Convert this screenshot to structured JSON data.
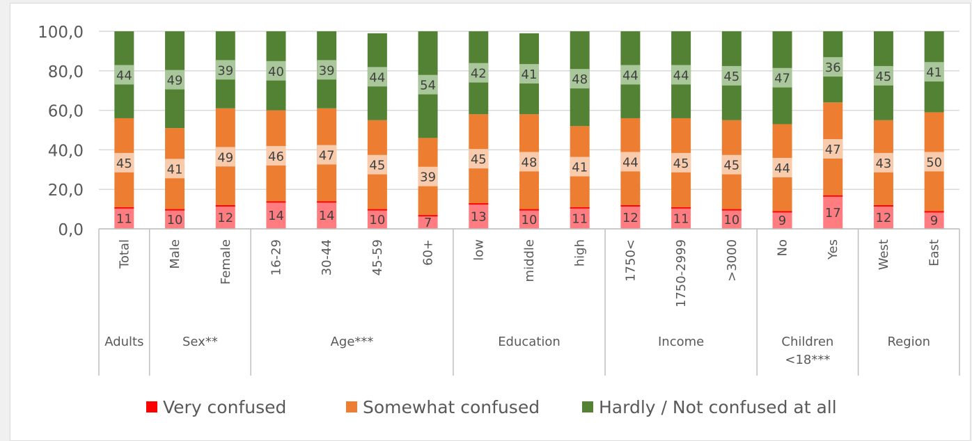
{
  "chart_data": {
    "type": "bar",
    "stacked": true,
    "ylim": [
      0,
      100
    ],
    "yticks": [
      "0,0",
      "20,0",
      "40,0",
      "60,0",
      "80,0",
      "100,0"
    ],
    "grid": true,
    "legend_position": "bottom",
    "categories": [
      "Total",
      "Male",
      "Female",
      "16-29",
      "30-44",
      "45-59",
      "60+",
      "low",
      "middle",
      "high",
      "1750<",
      "1750-2999",
      ">3000",
      "No",
      "Yes",
      "West",
      "East"
    ],
    "groups": [
      {
        "label": "Adults",
        "count": 1
      },
      {
        "label": "Sex**",
        "count": 2
      },
      {
        "label": "Age***",
        "count": 4
      },
      {
        "label": "Education",
        "count": 3
      },
      {
        "label": "Income",
        "count": 3
      },
      {
        "label": "Children\n<18***",
        "count": 2
      },
      {
        "label": "Region",
        "count": 2
      }
    ],
    "series": [
      {
        "name": "Very confused",
        "color": "#ff0000",
        "fill": "#ff7c80",
        "values": [
          11,
          10,
          12,
          14,
          14,
          10,
          7,
          13,
          10,
          11,
          12,
          11,
          10,
          9,
          17,
          12,
          9
        ],
        "labels": [
          "11",
          "10",
          "12",
          "14",
          "14",
          "10",
          "7",
          "13",
          "10",
          "11",
          "12",
          "11",
          "10",
          "9",
          "17",
          "12",
          "9"
        ]
      },
      {
        "name": "Somewhat confused",
        "color": "#ed7d31",
        "values": [
          45,
          41,
          49,
          46,
          47,
          45,
          39,
          45,
          48,
          41,
          44,
          45,
          45,
          44,
          47,
          43,
          50
        ],
        "labels": [
          "45",
          "41",
          "49",
          "46",
          "47",
          "45",
          "39",
          "45",
          "48",
          "41",
          "44",
          "45",
          "45",
          "44",
          "47",
          "43",
          "50"
        ]
      },
      {
        "name": "Hardly / Not confused at all",
        "color": "#548235",
        "values": [
          44,
          49,
          39,
          40,
          39,
          44,
          54,
          42,
          41,
          48,
          44,
          44,
          45,
          47,
          36,
          45,
          41
        ],
        "labels": [
          "44",
          "49",
          "39",
          "40",
          "39",
          "44",
          "54",
          "42",
          "41",
          "48",
          "44",
          "44",
          "45",
          "47",
          "36",
          "45",
          "41"
        ]
      }
    ]
  }
}
